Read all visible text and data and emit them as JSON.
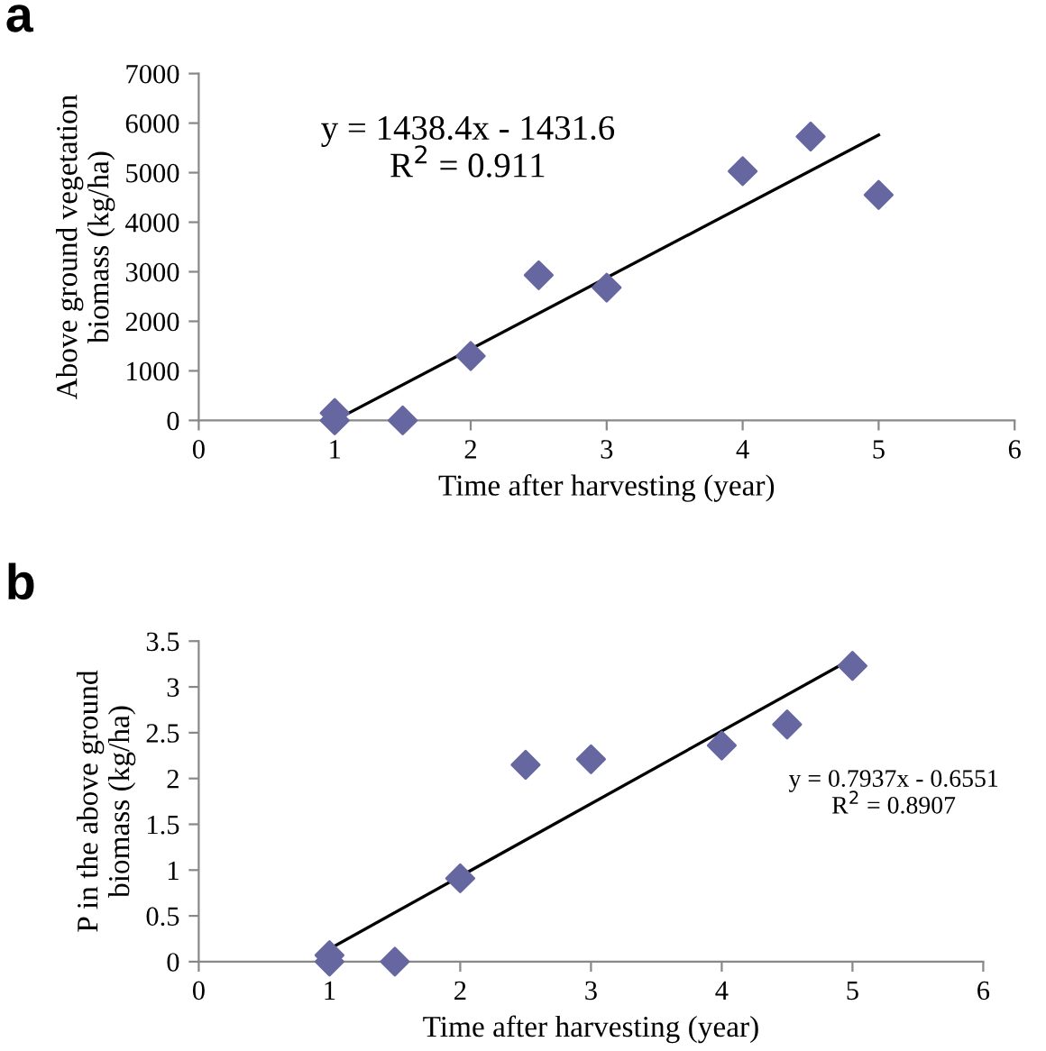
{
  "chart_data": [
    {
      "type": "scatter",
      "title": "a",
      "xlabel": "Time after harvesting (year)",
      "ylabel": "Above ground vegetation\nbiomass (kg/ha)",
      "xlim": [
        0,
        6
      ],
      "ylim": [
        0,
        7000
      ],
      "xticks": [
        0,
        1,
        2,
        3,
        4,
        5,
        6
      ],
      "yticks": [
        0,
        1000,
        2000,
        3000,
        4000,
        5000,
        6000,
        7000
      ],
      "grid": false,
      "legend": false,
      "marker": "diamond",
      "annotations": [
        "y = 1438.4x - 1431.6\nR$^{2}$ = 0.911"
      ],
      "series": [
        {
          "color": "#6666a0",
          "x": [
            1,
            1,
            1.5,
            2,
            2.5,
            3,
            4,
            4.5,
            5
          ],
          "values": [
            150,
            0,
            0,
            1300,
            2930,
            2680,
            5030,
            5730,
            4550
          ]
        },
        {
          "type": "line",
          "color": "#000000",
          "marker": "none",
          "line_style": "solid",
          "x": [
            1,
            5
          ],
          "values": [
            0,
            5760
          ]
        }
      ]
    },
    {
      "type": "scatter",
      "title": "b",
      "xlabel": "Time after harvesting (year)",
      "ylabel": "P in the above ground\nbiomass (kg/ha)",
      "xlim": [
        0,
        6
      ],
      "ylim": [
        0,
        3.5
      ],
      "xticks": [
        0,
        1,
        2,
        3,
        4,
        5,
        6
      ],
      "yticks": [
        0,
        0.5,
        1,
        1.5,
        2,
        2.5,
        3,
        3.5
      ],
      "grid": false,
      "legend": false,
      "marker": "diamond",
      "annotations": [
        "y = 0.7937x - 0.6551\nR$^{2}$ = 0.8907"
      ],
      "series": [
        {
          "color": "#6666a0",
          "x": [
            1,
            1,
            1.5,
            2,
            2.5,
            3,
            4,
            4.5,
            5
          ],
          "values": [
            0.07,
            0,
            0,
            0.91,
            2.15,
            2.21,
            2.36,
            2.59,
            3.23
          ]
        },
        {
          "type": "line",
          "color": "#000000",
          "marker": "none",
          "line_style": "solid",
          "x": [
            1,
            5
          ],
          "values": [
            0.14,
            3.31
          ]
        }
      ]
    }
  ]
}
